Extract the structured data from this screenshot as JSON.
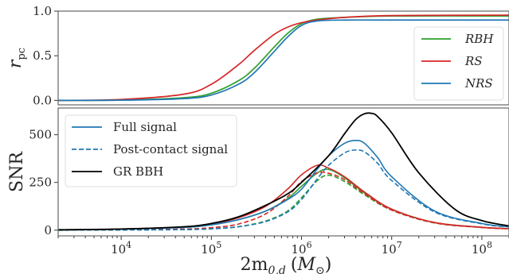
{
  "chart_data": [
    {
      "type": "line",
      "panel": "top",
      "ylabel": "r",
      "ylabel_sub": "pc",
      "ylim": [
        -0.05,
        1.0
      ],
      "yticks": [
        0.0,
        0.5,
        1.0
      ],
      "ytick_labels": [
        "0.0",
        "0.5",
        "1.0"
      ],
      "xscale": "log",
      "xlim": [
        2000,
        200000000
      ],
      "legend_position": "right",
      "grid": false,
      "series": [
        {
          "name": "RBH",
          "color": "#2ca02c",
          "style": "solid",
          "x": [
            2000,
            10000,
            50000,
            100000,
            200000,
            300000,
            500000,
            700000,
            1000000,
            1500000,
            3000000,
            10000000,
            200000000
          ],
          "y": [
            0.0,
            0.003,
            0.03,
            0.08,
            0.22,
            0.36,
            0.6,
            0.75,
            0.86,
            0.91,
            0.93,
            0.945,
            0.945
          ]
        },
        {
          "name": "RS",
          "color": "#d62728",
          "style": "solid",
          "x": [
            2000,
            10000,
            50000,
            100000,
            200000,
            300000,
            500000,
            700000,
            1000000,
            1500000,
            3000000,
            10000000,
            200000000
          ],
          "y": [
            0.0,
            0.01,
            0.07,
            0.18,
            0.4,
            0.56,
            0.74,
            0.82,
            0.87,
            0.9,
            0.93,
            0.95,
            0.955
          ]
        },
        {
          "name": "NRS",
          "color": "#1f77b4",
          "style": "solid",
          "x": [
            2000,
            10000,
            50000,
            100000,
            200000,
            300000,
            500000,
            700000,
            1000000,
            1500000,
            3000000,
            10000000,
            200000000
          ],
          "y": [
            0.0,
            0.002,
            0.02,
            0.06,
            0.18,
            0.31,
            0.55,
            0.71,
            0.84,
            0.89,
            0.9,
            0.9,
            0.9
          ]
        }
      ]
    },
    {
      "type": "line",
      "panel": "bottom",
      "ylabel": "SNR",
      "xlabel": "2m",
      "xlabel_sub": "0,d",
      "xlabel_unit_open": "(",
      "xlabel_unit": "M",
      "xlabel_unit_sub": "⊙",
      "xlabel_unit_close": ")",
      "xscale": "log",
      "xlim": [
        2000,
        200000000
      ],
      "ylim": [
        -30,
        640
      ],
      "yticks": [
        0,
        250,
        500
      ],
      "ytick_labels": [
        "0",
        "250",
        "500"
      ],
      "xticks": [
        10000,
        100000,
        1000000,
        10000000,
        100000000
      ],
      "xtick_base": "10",
      "xtick_exps": [
        "4",
        "5",
        "6",
        "7",
        "8"
      ],
      "legend_position": "upper left",
      "grid": false,
      "legend": [
        {
          "label": "Full signal",
          "color": "#1f77b4",
          "style": "solid"
        },
        {
          "label": "Post-contact signal",
          "color": "#1f77b4",
          "style": "dashed"
        },
        {
          "label": "GR BBH",
          "color": "#000000",
          "style": "solid"
        }
      ],
      "series": [
        {
          "model": "RBH",
          "signal": "full",
          "color": "#2ca02c",
          "style": "solid",
          "x": [
            2000,
            10000,
            50000,
            100000,
            200000,
            400000,
            700000,
            1000000,
            1500000,
            2000000,
            3000000,
            5000000,
            10000000,
            30000000,
            100000000,
            200000000
          ],
          "y": [
            1,
            5,
            15,
            28,
            55,
            100,
            165,
            230,
            300,
            318,
            275,
            195,
            110,
            40,
            15,
            8
          ]
        },
        {
          "model": "RBH",
          "signal": "post-contact",
          "color": "#2ca02c",
          "style": "dashed",
          "x": [
            2000,
            10000,
            50000,
            100000,
            200000,
            400000,
            700000,
            1000000,
            1500000,
            2000000,
            3000000,
            5000000,
            10000000,
            30000000,
            100000000,
            200000000
          ],
          "y": [
            0,
            1,
            3,
            7,
            18,
            48,
            100,
            170,
            260,
            288,
            255,
            185,
            105,
            38,
            14,
            7
          ]
        },
        {
          "model": "RS",
          "signal": "full",
          "color": "#d62728",
          "style": "solid",
          "x": [
            2000,
            10000,
            50000,
            100000,
            200000,
            400000,
            700000,
            1000000,
            1500000,
            2000000,
            3000000,
            5000000,
            10000000,
            30000000,
            100000000,
            200000000
          ],
          "y": [
            1,
            6,
            17,
            32,
            65,
            125,
            215,
            290,
            340,
            325,
            280,
            200,
            110,
            40,
            15,
            8
          ]
        },
        {
          "model": "RS",
          "signal": "post-contact",
          "color": "#d62728",
          "style": "dashed",
          "x": [
            2000,
            10000,
            50000,
            100000,
            200000,
            400000,
            700000,
            1000000,
            1500000,
            2000000,
            3000000,
            5000000,
            10000000,
            30000000,
            100000000,
            200000000
          ],
          "y": [
            0,
            2,
            6,
            13,
            32,
            85,
            175,
            255,
            300,
            298,
            265,
            190,
            105,
            38,
            14,
            7
          ]
        },
        {
          "model": "NRS",
          "signal": "full",
          "color": "#1f77b4",
          "style": "solid",
          "x": [
            2000,
            10000,
            50000,
            100000,
            200000,
            400000,
            700000,
            1000000,
            1500000,
            2000000,
            3000000,
            4000000,
            5000000,
            7000000,
            10000000,
            30000000,
            100000000,
            200000000
          ],
          "y": [
            1,
            5,
            15,
            28,
            55,
            100,
            160,
            215,
            320,
            390,
            455,
            470,
            455,
            380,
            280,
            100,
            35,
            18
          ]
        },
        {
          "model": "NRS",
          "signal": "post-contact",
          "color": "#1f77b4",
          "style": "dashed",
          "x": [
            2000,
            10000,
            50000,
            100000,
            200000,
            400000,
            700000,
            1000000,
            1500000,
            2000000,
            3000000,
            4000000,
            5000000,
            7000000,
            10000000,
            30000000,
            100000000,
            200000000
          ],
          "y": [
            0,
            1,
            3,
            7,
            18,
            45,
            95,
            160,
            270,
            340,
            405,
            420,
            410,
            350,
            260,
            95,
            33,
            17
          ]
        },
        {
          "model": "GR BBH",
          "signal": "full",
          "color": "#000000",
          "style": "solid",
          "x": [
            2000,
            10000,
            50000,
            100000,
            200000,
            400000,
            700000,
            1000000,
            2000000,
            3000000,
            4000000,
            5000000,
            6000000,
            7000000,
            10000000,
            20000000,
            50000000,
            100000000,
            200000000
          ],
          "y": [
            2,
            6,
            18,
            35,
            70,
            130,
            190,
            250,
            390,
            505,
            580,
            610,
            612,
            595,
            510,
            300,
            110,
            50,
            22
          ]
        }
      ]
    }
  ]
}
